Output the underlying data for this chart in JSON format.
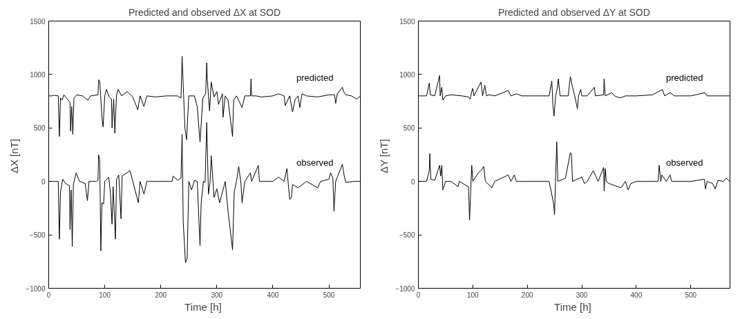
{
  "chart_data": [
    {
      "type": "line",
      "title": "Predicted and observed ΔX at SOD",
      "xlabel": "Time  [h]",
      "ylabel": "ΔX  [nT]",
      "xlim": [
        0,
        556
      ],
      "ylim": [
        -1000,
        1500
      ],
      "xticks": [
        0,
        100,
        200,
        300,
        400,
        500
      ],
      "yticks": [
        -1000,
        -500,
        0,
        500,
        1000,
        1500
      ],
      "grid": false,
      "legend": false,
      "line_style": "solid",
      "marker": "none",
      "series": [
        {
          "name": "predicted",
          "color": "#000000",
          "x": [
            0,
            5,
            10,
            17,
            19,
            21,
            24,
            27,
            30,
            38,
            39,
            41,
            43,
            45,
            50,
            60,
            70,
            75,
            88,
            89,
            91,
            95,
            97,
            100,
            103,
            108,
            112,
            113,
            116,
            118,
            121,
            124,
            130,
            140,
            150,
            159,
            163,
            170,
            175,
            190,
            210,
            230,
            236,
            238,
            240,
            243,
            246,
            250,
            260,
            265,
            270,
            275,
            280,
            282,
            283,
            285,
            287,
            290,
            295,
            300,
            303,
            310,
            311,
            315,
            320,
            328,
            330,
            335,
            345,
            350,
            360,
            361,
            362,
            370,
            380,
            400,
            410,
            420,
            422,
            430,
            435,
            440,
            445,
            448,
            452,
            460,
            480,
            500,
            510,
            512,
            515,
            524,
            526,
            530,
            540,
            550,
            556
          ],
          "values": [
            800,
            800,
            805,
            800,
            420,
            780,
            760,
            810,
            790,
            740,
            470,
            700,
            440,
            780,
            810,
            800,
            760,
            800,
            810,
            950,
            940,
            600,
            510,
            800,
            860,
            790,
            770,
            500,
            770,
            450,
            810,
            860,
            800,
            840,
            790,
            670,
            800,
            700,
            800,
            790,
            800,
            800,
            780,
            1170,
            900,
            500,
            390,
            800,
            800,
            700,
            370,
            780,
            820,
            1110,
            950,
            800,
            660,
            930,
            790,
            840,
            720,
            820,
            600,
            800,
            760,
            420,
            760,
            800,
            690,
            800,
            800,
            960,
            800,
            800,
            790,
            800,
            820,
            800,
            710,
            800,
            650,
            770,
            800,
            690,
            820,
            800,
            790,
            810,
            810,
            730,
            820,
            880,
            840,
            810,
            800,
            770,
            800
          ]
        },
        {
          "name": "observed",
          "color": "#000000",
          "x": [
            0,
            10,
            17,
            19,
            21,
            25,
            30,
            37,
            38,
            40,
            42,
            44,
            49,
            55,
            65,
            69,
            72,
            85,
            88,
            89,
            91,
            93,
            95,
            98,
            100,
            107,
            110,
            113,
            115,
            119,
            121,
            125,
            129,
            131,
            145,
            150,
            160,
            163,
            170,
            175,
            190,
            220,
            222,
            230,
            236,
            238,
            240,
            244,
            247,
            250,
            255,
            260,
            265,
            270,
            272,
            276,
            279,
            282,
            285,
            288,
            290,
            295,
            300,
            305,
            310,
            315,
            320,
            328,
            331,
            335,
            339,
            343,
            345,
            350,
            360,
            362,
            374,
            376,
            400,
            410,
            420,
            425,
            430,
            433,
            435,
            445,
            460,
            480,
            485,
            500,
            503,
            507,
            509,
            512,
            524,
            527,
            530,
            545,
            556
          ],
          "values": [
            0,
            0,
            0,
            -540,
            -100,
            20,
            -20,
            -40,
            -450,
            -80,
            -610,
            -30,
            80,
            0,
            -20,
            -180,
            0,
            0,
            10,
            250,
            200,
            -650,
            -200,
            -210,
            0,
            40,
            -100,
            -400,
            -50,
            -540,
            20,
            60,
            -350,
            50,
            100,
            0,
            -200,
            0,
            -120,
            0,
            0,
            0,
            50,
            10,
            30,
            440,
            -380,
            -760,
            -720,
            0,
            -80,
            10,
            0,
            -600,
            -200,
            0,
            -10,
            550,
            -120,
            0,
            240,
            -150,
            -70,
            -200,
            -100,
            0,
            -280,
            -640,
            -100,
            0,
            140,
            -20,
            -200,
            0,
            80,
            0,
            150,
            0,
            0,
            40,
            0,
            120,
            -170,
            -150,
            -30,
            -60,
            0,
            -60,
            0,
            20,
            80,
            30,
            -280,
            0,
            160,
            60,
            -10,
            0,
            0
          ]
        }
      ]
    },
    {
      "type": "line",
      "title": "Predicted and observed ΔY at SOD",
      "xlabel": "Time  [h]",
      "ylabel": "ΔY  [nT]",
      "xlim": [
        0,
        572
      ],
      "ylim": [
        -1000,
        1500
      ],
      "xticks": [
        0,
        100,
        200,
        300,
        400,
        500
      ],
      "yticks": [
        -1000,
        -500,
        0,
        500,
        1000,
        1500
      ],
      "grid": false,
      "legend": false,
      "line_style": "solid",
      "marker": "none",
      "series": [
        {
          "name": "predicted",
          "color": "#000000",
          "x": [
            0,
            15,
            20,
            22,
            30,
            39,
            40,
            43,
            45,
            50,
            60,
            80,
            92,
            95,
            98,
            100,
            102,
            115,
            118,
            122,
            125,
            130,
            140,
            165,
            170,
            180,
            190,
            220,
            240,
            245,
            247,
            249,
            252,
            255,
            257,
            260,
            275,
            279,
            283,
            287,
            292,
            294,
            298,
            300,
            310,
            323,
            325,
            340,
            341,
            343,
            355,
            360,
            370,
            380,
            400,
            430,
            448,
            452,
            462,
            470,
            500,
            526,
            530,
            560,
            572
          ],
          "values": [
            800,
            800,
            920,
            810,
            800,
            990,
            800,
            880,
            760,
            800,
            810,
            800,
            790,
            770,
            840,
            870,
            800,
            930,
            800,
            900,
            800,
            810,
            800,
            850,
            800,
            820,
            800,
            800,
            800,
            940,
            710,
            610,
            800,
            870,
            960,
            800,
            800,
            980,
            880,
            800,
            680,
            800,
            860,
            800,
            800,
            880,
            800,
            810,
            960,
            800,
            830,
            800,
            780,
            800,
            800,
            810,
            860,
            800,
            830,
            800,
            800,
            830,
            800,
            800,
            800
          ]
        },
        {
          "name": "observed",
          "color": "#000000",
          "x": [
            0,
            15,
            20,
            21,
            23,
            30,
            39,
            41,
            43,
            45,
            50,
            60,
            73,
            75,
            92,
            94,
            96,
            98,
            100,
            110,
            115,
            120,
            123,
            135,
            140,
            165,
            170,
            176,
            180,
            200,
            240,
            248,
            250,
            252,
            254,
            256,
            270,
            279,
            281,
            283,
            300,
            305,
            310,
            321,
            330,
            340,
            341,
            343,
            345,
            350,
            372,
            380,
            385,
            390,
            400,
            420,
            440,
            442,
            445,
            447,
            455,
            462,
            465,
            500,
            525,
            527,
            530,
            540,
            545,
            550,
            560,
            565,
            572
          ],
          "values": [
            0,
            0,
            100,
            260,
            20,
            10,
            150,
            50,
            150,
            -80,
            0,
            0,
            -50,
            0,
            -50,
            -360,
            -100,
            150,
            0,
            80,
            100,
            140,
            0,
            -60,
            0,
            60,
            0,
            60,
            0,
            0,
            0,
            -200,
            -310,
            50,
            370,
            0,
            30,
            270,
            250,
            0,
            40,
            -20,
            0,
            100,
            0,
            130,
            -90,
            120,
            0,
            -20,
            -60,
            0,
            -80,
            -20,
            0,
            0,
            0,
            150,
            0,
            60,
            0,
            60,
            0,
            0,
            20,
            -70,
            0,
            -20,
            -70,
            10,
            0,
            30,
            0
          ]
        }
      ]
    }
  ]
}
